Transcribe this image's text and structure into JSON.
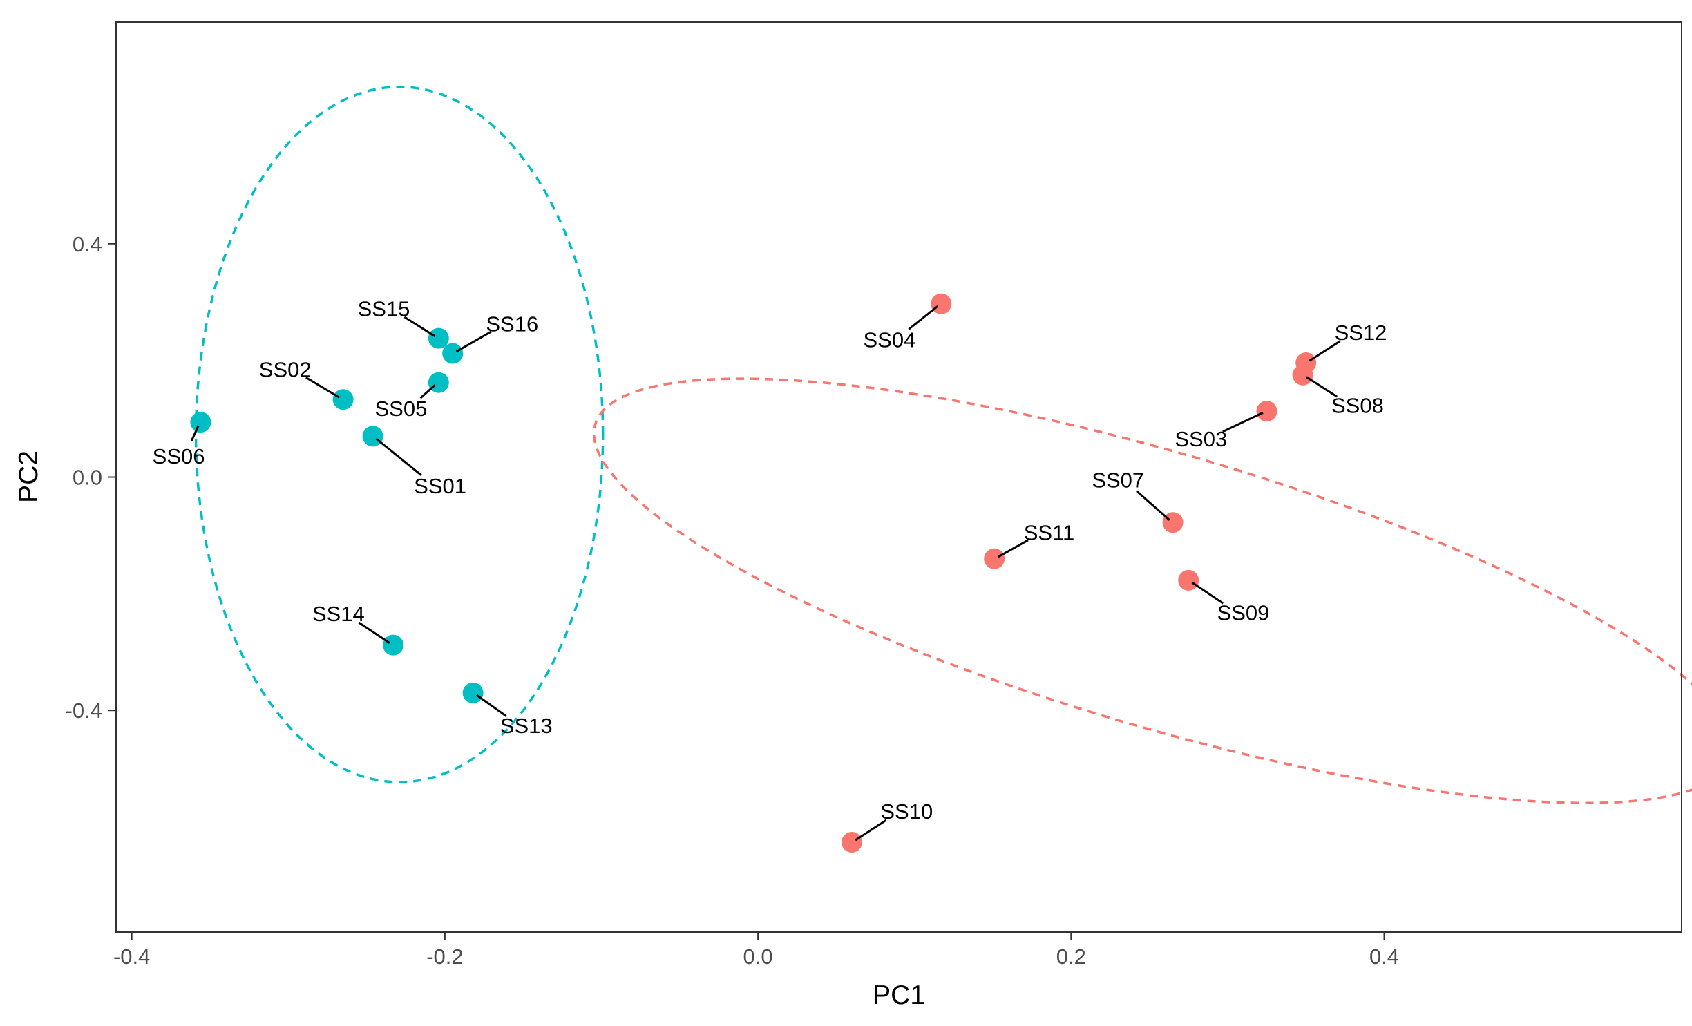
{
  "chart_data": {
    "type": "scatter",
    "title": "",
    "xlabel": "PC1",
    "ylabel": "PC2",
    "xlim": [
      -0.41,
      0.59
    ],
    "ylim": [
      -0.78,
      0.78
    ],
    "x_ticks": [
      -0.4,
      -0.2,
      0.0,
      0.2,
      0.4
    ],
    "x_tick_labels": [
      "-0.4",
      "-0.2",
      "0.0",
      "0.2",
      "0.4"
    ],
    "y_ticks": [
      -0.4,
      0.0,
      0.4
    ],
    "y_tick_labels": [
      "-0.4",
      "0.0",
      "0.4"
    ],
    "grid": false,
    "legend": "none",
    "groups": [
      {
        "name": "group-teal",
        "color": "#00BFC4",
        "ellipse": {
          "center": [
            -0.229,
            0.073
          ],
          "semi_axes": [
            0.13,
            0.596
          ],
          "rotation_deg": 0
        },
        "points": [
          {
            "label": "SS01",
            "x": -0.246,
            "y": 0.07,
            "label_pos": [
              -0.203,
              -0.015
            ]
          },
          {
            "label": "SS02",
            "x": -0.265,
            "y": 0.133,
            "label_pos": [
              -0.302,
              0.185
            ]
          },
          {
            "label": "SS05",
            "x": -0.204,
            "y": 0.162,
            "label_pos": [
              -0.228,
              0.118
            ]
          },
          {
            "label": "SS06",
            "x": -0.356,
            "y": 0.094,
            "label_pos": [
              -0.37,
              0.036
            ]
          },
          {
            "label": "SS13",
            "x": -0.182,
            "y": -0.37,
            "label_pos": [
              -0.148,
              -0.426
            ]
          },
          {
            "label": "SS14",
            "x": -0.233,
            "y": -0.288,
            "label_pos": [
              -0.268,
              -0.234
            ]
          },
          {
            "label": "SS15",
            "x": -0.204,
            "y": 0.238,
            "label_pos": [
              -0.239,
              0.289
            ]
          },
          {
            "label": "SS16",
            "x": -0.195,
            "y": 0.212,
            "label_pos": [
              -0.157,
              0.263
            ]
          }
        ]
      },
      {
        "name": "group-red",
        "color": "#F8766D",
        "ellipse": {
          "center": [
            0.259,
            -0.195
          ],
          "semi_axes": [
            0.48,
            0.185
          ],
          "rotation_deg": -45
        },
        "points": [
          {
            "label": "SS03",
            "x": 0.325,
            "y": 0.113,
            "label_pos": [
              0.283,
              0.066
            ]
          },
          {
            "label": "SS04",
            "x": 0.117,
            "y": 0.297,
            "label_pos": [
              0.084,
              0.236
            ]
          },
          {
            "label": "SS07",
            "x": 0.265,
            "y": -0.078,
            "label_pos": [
              0.23,
              -0.005
            ]
          },
          {
            "label": "SS08",
            "x": 0.348,
            "y": 0.175,
            "label_pos": [
              0.383,
              0.123
            ]
          },
          {
            "label": "SS09",
            "x": 0.275,
            "y": -0.177,
            "label_pos": [
              0.31,
              -0.232
            ]
          },
          {
            "label": "SS10",
            "x": 0.06,
            "y": -0.626,
            "label_pos": [
              0.095,
              -0.573
            ]
          },
          {
            "label": "SS11",
            "x": 0.151,
            "y": -0.14,
            "label_pos": [
              0.186,
              -0.095
            ]
          },
          {
            "label": "SS12",
            "x": 0.35,
            "y": 0.196,
            "label_pos": [
              0.385,
              0.248
            ]
          }
        ]
      }
    ]
  }
}
